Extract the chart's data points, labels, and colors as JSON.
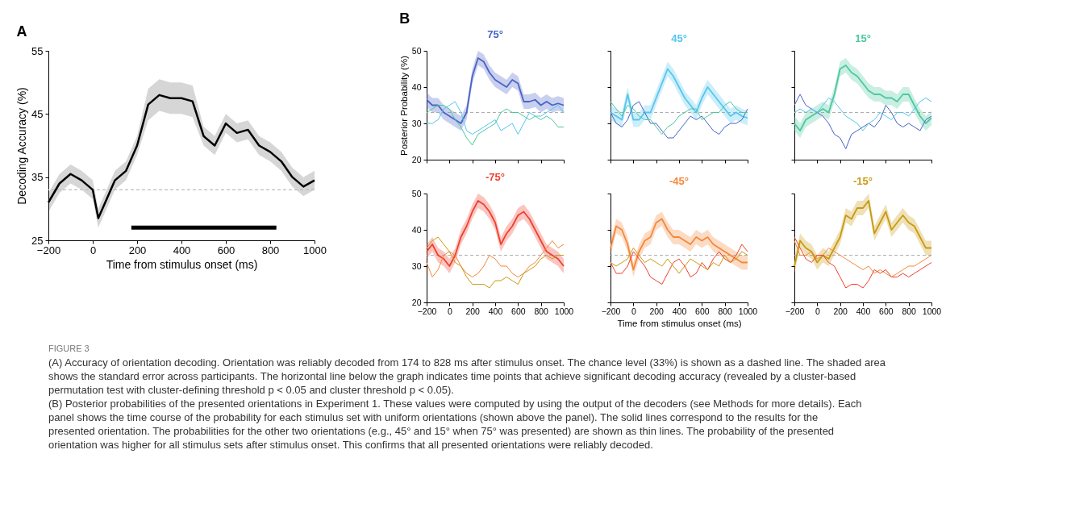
{
  "chart_data": [
    {
      "type": "line",
      "title": "A",
      "xlabel": "Time from stimulus onset (ms)",
      "ylabel": "Decoding Accuracy (%)",
      "x": [
        -200,
        -150,
        -100,
        -50,
        0,
        25,
        50,
        100,
        150,
        200,
        250,
        300,
        350,
        400,
        450,
        500,
        550,
        600,
        650,
        700,
        750,
        800,
        850,
        900,
        950,
        1000
      ],
      "xlim": [
        -200,
        1000
      ],
      "xticks": [
        -200,
        0,
        200,
        400,
        600,
        800,
        1000
      ],
      "ylim": [
        25,
        55
      ],
      "yticks": [
        25,
        35,
        45,
        55
      ],
      "grid": false,
      "series": [
        {
          "color": "#000000",
          "values": [
            31,
            34,
            35.5,
            34.5,
            33,
            28.5,
            30.5,
            34.5,
            36,
            40,
            46.5,
            48,
            47.5,
            47.5,
            47,
            41.5,
            40,
            43.5,
            42,
            42.5,
            40,
            39,
            37.5,
            35,
            33.5,
            34.5
          ],
          "lower": [
            29.5,
            32.5,
            34,
            33,
            31.5,
            27,
            29,
            33,
            34.5,
            38.5,
            44,
            45.5,
            45,
            45,
            44.5,
            40,
            38.5,
            42,
            40.5,
            41,
            38.5,
            37.5,
            36,
            33.5,
            32,
            33
          ],
          "upper": [
            32.5,
            35.5,
            37,
            36,
            34.5,
            30,
            32,
            36,
            37.5,
            41.5,
            49,
            50.5,
            50,
            50,
            49.5,
            43,
            41.5,
            45,
            43.5,
            44,
            41.5,
            40.5,
            39,
            36.5,
            35,
            36
          ]
        },
        {
          "color": "#000000",
          "x": [
            174,
            828
          ],
          "values": [
            27,
            27
          ]
        }
      ],
      "ref_lines": [
        {
          "axis": "y",
          "value": 33,
          "color": "#bbbbbb",
          "line_style": "dashed"
        }
      ],
      "annotations": [
        "FIGURE 3",
        "(A) Accuracy of orientation decoding. Orientation was reliably decoded from 174 to 828 ms after stimulus onset. The chance level (33%) is shown as a dashed line. The shaded area shows the standard error across participants. The horizontal line below the graph indicates time points that achieve significant decoding accuracy (revealed by a cluster-based permutation test with cluster-defining threshold p < 0.05 and cluster threshold p < 0.05).",
        "(B) Posterior probabilities of the presented orientations in Experiment 1. These values were computed by using the output of the decoders (see Methods for more details). Each panel shows the time course of the probability for each stimulus set with uniform orientations (shown above the panel). The solid lines correspond to the results for the presented orientation. The probabilities for the other two orientations (e.g., 45° and 15° when 75° was presented) are shown as thin lines. The probability of the presented orientation was higher for all stimulus sets after stimulus onset. This confirms that all presented orientations were reliably decoded."
      ]
    },
    {
      "type": "line",
      "title": "75°",
      "ylabel": "Posterior Probability (%)",
      "annotations": [
        "B"
      ],
      "tick_labels": "y",
      "x": [
        -200,
        -150,
        -100,
        -50,
        0,
        50,
        100,
        150,
        200,
        250,
        300,
        350,
        400,
        450,
        500,
        550,
        600,
        650,
        700,
        750,
        800,
        850,
        900,
        950,
        1000
      ],
      "xlim": [
        -200,
        1000
      ],
      "xticks": [
        -200,
        0,
        200,
        400,
        600,
        800,
        1000
      ],
      "ylim": [
        20,
        50
      ],
      "yticks": [
        20,
        30,
        40,
        50
      ],
      "grid": false,
      "series": [
        {
          "color": "#4a63c8",
          "values": [
            36.5,
            35,
            35,
            33,
            32,
            31,
            30,
            33,
            43,
            48,
            47,
            44,
            42,
            41,
            40,
            42,
            41,
            36,
            36,
            36.5,
            35,
            36,
            35,
            35.5,
            35
          ],
          "lower": [
            34.5,
            33,
            33,
            31,
            30,
            29,
            28,
            31,
            41,
            46,
            45,
            42,
            40,
            39,
            38,
            40,
            39,
            34,
            34,
            34.5,
            33,
            34,
            33,
            33.5,
            33
          ],
          "upper": [
            38.5,
            37,
            37,
            35,
            34,
            33,
            32,
            35,
            45,
            50,
            49,
            46,
            44,
            43,
            42,
            44,
            43,
            38,
            38,
            38.5,
            37,
            38,
            37,
            37.5,
            37
          ]
        },
        {
          "color": "#55c6ee",
          "values": [
            30,
            30,
            31,
            34,
            35,
            36,
            33,
            28,
            27,
            28,
            29,
            30,
            31,
            28,
            29,
            30,
            27,
            30,
            33,
            32,
            32,
            33,
            34,
            35,
            33
          ]
        },
        {
          "color": "#4cc8a0",
          "values": [
            33,
            34,
            35,
            35,
            34,
            31,
            29,
            26,
            24,
            27,
            28,
            29,
            30,
            33,
            34,
            33,
            33,
            32,
            31,
            32,
            31,
            32,
            31,
            29,
            29
          ]
        }
      ],
      "ref_lines": [
        {
          "axis": "y",
          "value": 33,
          "color": "#999999",
          "line_style": "dashed"
        }
      ]
    },
    {
      "type": "line",
      "title": "45°",
      "tick_labels": false,
      "x": [
        -200,
        -150,
        -100,
        -50,
        0,
        50,
        100,
        150,
        200,
        250,
        300,
        350,
        400,
        450,
        500,
        550,
        600,
        650,
        700,
        750,
        800,
        850,
        900,
        950,
        1000
      ],
      "xlim": [
        -200,
        1000
      ],
      "xticks": [
        -200,
        0,
        200,
        400,
        600,
        800,
        1000
      ],
      "ylim": [
        20,
        50
      ],
      "yticks": [
        20,
        30,
        40,
        50
      ],
      "grid": false,
      "series": [
        {
          "color": "#55c6ee",
          "values": [
            33,
            32,
            31,
            38,
            31,
            31,
            33,
            33,
            37,
            41,
            45,
            43,
            40,
            37,
            35,
            33,
            37,
            40,
            38,
            36,
            34,
            32,
            33,
            32,
            31.5
          ],
          "lower": [
            31,
            30,
            29,
            36,
            29,
            29,
            31,
            31,
            35,
            39,
            43,
            41,
            38,
            35,
            33,
            31,
            35,
            38,
            36,
            34,
            32,
            30,
            31,
            30,
            29.5
          ],
          "upper": [
            35,
            34,
            33,
            40,
            33,
            33,
            35,
            35,
            39,
            43,
            47,
            45,
            42,
            39,
            37,
            35,
            39,
            42,
            40,
            38,
            36,
            34,
            35,
            34,
            33.5
          ]
        },
        {
          "color": "#4a63c8",
          "values": [
            33,
            30,
            29,
            31,
            35,
            36,
            33,
            30,
            30,
            28,
            26,
            26,
            28,
            30,
            32,
            31,
            32,
            30,
            28,
            27,
            29,
            30,
            30,
            31,
            34
          ]
        },
        {
          "color": "#4cc8a0",
          "values": [
            36,
            34,
            32,
            35,
            34,
            32,
            31,
            31,
            29,
            27,
            29,
            30,
            32,
            33,
            34,
            34,
            31,
            32,
            33,
            33,
            35,
            36,
            34,
            33,
            33
          ]
        }
      ],
      "ref_lines": [
        {
          "axis": "y",
          "value": 33,
          "color": "#999999",
          "line_style": "dashed"
        }
      ]
    },
    {
      "type": "line",
      "title": "15°",
      "tick_labels": false,
      "x": [
        -200,
        -150,
        -100,
        -50,
        0,
        50,
        100,
        150,
        200,
        250,
        300,
        350,
        400,
        450,
        500,
        550,
        600,
        650,
        700,
        750,
        800,
        850,
        900,
        950,
        1000
      ],
      "xlim": [
        -200,
        1000
      ],
      "xticks": [
        -200,
        0,
        200,
        400,
        600,
        800,
        1000
      ],
      "ylim": [
        20,
        50
      ],
      "yticks": [
        20,
        30,
        40,
        50
      ],
      "grid": false,
      "series": [
        {
          "color": "#4cc8a0",
          "values": [
            30,
            28,
            31,
            32,
            33,
            34,
            33,
            38,
            45,
            46,
            44,
            43,
            41,
            39,
            38,
            38,
            37,
            37,
            36,
            38,
            38,
            35,
            32,
            30,
            31.5
          ],
          "lower": [
            28,
            26,
            29,
            30,
            31,
            32,
            31,
            36,
            43,
            44,
            42,
            41,
            39,
            37,
            36,
            36,
            35,
            35,
            34,
            36,
            36,
            33,
            30,
            28,
            29.5
          ],
          "upper": [
            32,
            30,
            33,
            34,
            35,
            36,
            35,
            40,
            47,
            48,
            46,
            45,
            43,
            41,
            40,
            40,
            39,
            39,
            38,
            40,
            40,
            37,
            34,
            32,
            33.5
          ]
        },
        {
          "color": "#4a63c8",
          "values": [
            35,
            38,
            35,
            34,
            33,
            32,
            30,
            27,
            26,
            23,
            27,
            28,
            29,
            30,
            29,
            31,
            35,
            33,
            30,
            29,
            30,
            29,
            28,
            31,
            32
          ]
        },
        {
          "color": "#55c6ee",
          "values": [
            33,
            34,
            33,
            34,
            33,
            35,
            37,
            36,
            34,
            32,
            31,
            30,
            28,
            30,
            31,
            33,
            32,
            31,
            33,
            33,
            32,
            34,
            36,
            37,
            36
          ]
        }
      ],
      "ref_lines": [
        {
          "axis": "y",
          "value": 33,
          "color": "#999999",
          "line_style": "dashed"
        }
      ]
    },
    {
      "type": "line",
      "title": "-75°",
      "x": [
        -200,
        -150,
        -100,
        -50,
        0,
        50,
        100,
        150,
        200,
        250,
        300,
        350,
        400,
        450,
        500,
        550,
        600,
        650,
        700,
        750,
        800,
        850,
        900,
        950,
        1000
      ],
      "xlim": [
        -200,
        1000
      ],
      "xticks": [
        -200,
        0,
        200,
        400,
        600,
        800,
        1000
      ],
      "ylim": [
        20,
        50
      ],
      "yticks": [
        20,
        30,
        40,
        50
      ],
      "grid": false,
      "series": [
        {
          "color": "#f0402e",
          "values": [
            34,
            36,
            33,
            32,
            30,
            33,
            38,
            41,
            45,
            48,
            47,
            45,
            42,
            36,
            39,
            41,
            44,
            45,
            43,
            40,
            37,
            34,
            33,
            32,
            30
          ],
          "lower": [
            32,
            34,
            31,
            30,
            28,
            31,
            36,
            39,
            43,
            46,
            45,
            43,
            40,
            34,
            37,
            39,
            42,
            43,
            41,
            38,
            35,
            32,
            31,
            30,
            28
          ],
          "upper": [
            36,
            38,
            35,
            34,
            32,
            35,
            40,
            43,
            47,
            50,
            49,
            47,
            44,
            38,
            41,
            43,
            46,
            47,
            45,
            42,
            39,
            36,
            35,
            34,
            32
          ]
        },
        {
          "color": "#f5873a",
          "values": [
            31,
            27,
            29,
            33,
            34,
            33,
            30,
            28,
            27,
            28,
            30,
            33,
            32,
            30,
            30,
            28,
            27,
            28,
            30,
            31,
            33,
            35,
            37,
            35,
            36
          ]
        },
        {
          "color": "#c89a10",
          "values": [
            35,
            37,
            38,
            36,
            34,
            31,
            30,
            27,
            25,
            25,
            25,
            24,
            26,
            26,
            27,
            26,
            25,
            28,
            29,
            30,
            32,
            33,
            32,
            33,
            33
          ]
        }
      ],
      "ref_lines": [
        {
          "axis": "y",
          "value": 33,
          "color": "#999999",
          "line_style": "dashed"
        }
      ]
    },
    {
      "type": "line",
      "title": "-45°",
      "xlabel": "Time from stimulus onset (ms)",
      "tick_labels": "x",
      "x": [
        -200,
        -150,
        -100,
        -50,
        0,
        50,
        100,
        150,
        200,
        250,
        300,
        350,
        400,
        450,
        500,
        550,
        600,
        650,
        700,
        750,
        800,
        850,
        900,
        950,
        1000
      ],
      "xlim": [
        -200,
        1000
      ],
      "xticks": [
        -200,
        0,
        200,
        400,
        600,
        800,
        1000
      ],
      "ylim": [
        20,
        50
      ],
      "yticks": [
        20,
        30,
        40,
        50
      ],
      "grid": false,
      "series": [
        {
          "color": "#f5873a",
          "values": [
            35,
            41,
            40,
            36,
            29,
            34,
            37,
            38,
            42,
            43,
            40,
            38,
            38,
            37,
            36,
            38,
            37,
            38,
            36,
            35,
            34,
            33,
            32,
            31,
            31
          ],
          "lower": [
            33,
            39,
            38,
            34,
            27,
            32,
            35,
            36,
            40,
            41,
            38,
            36,
            36,
            35,
            34,
            36,
            35,
            36,
            34,
            33,
            32,
            31,
            30,
            29,
            29
          ],
          "upper": [
            37,
            43,
            42,
            38,
            31,
            36,
            39,
            40,
            44,
            45,
            42,
            40,
            40,
            39,
            38,
            40,
            39,
            40,
            38,
            37,
            36,
            35,
            34,
            33,
            33
          ]
        },
        {
          "color": "#f0402e",
          "values": [
            31,
            28,
            28,
            30,
            34,
            32,
            30,
            27,
            26,
            25,
            28,
            31,
            32,
            30,
            27,
            28,
            31,
            29,
            32,
            34,
            32,
            31,
            33,
            36,
            34
          ]
        },
        {
          "color": "#c89a10",
          "values": [
            31,
            30,
            31,
            32,
            35,
            33,
            31,
            32,
            31,
            30,
            32,
            30,
            28,
            30,
            32,
            31,
            30,
            29,
            31,
            30,
            33,
            31,
            32,
            34,
            33
          ]
        }
      ],
      "ref_lines": [
        {
          "axis": "y",
          "value": 33,
          "color": "#999999",
          "line_style": "dashed"
        }
      ]
    },
    {
      "type": "line",
      "title": "-15°",
      "tick_labels": "x",
      "x": [
        -200,
        -150,
        -100,
        -50,
        0,
        50,
        100,
        150,
        200,
        250,
        300,
        350,
        400,
        450,
        500,
        550,
        600,
        650,
        700,
        750,
        800,
        850,
        900,
        950,
        1000
      ],
      "xlim": [
        -200,
        1000
      ],
      "xticks": [
        -200,
        0,
        200,
        400,
        600,
        800,
        1000
      ],
      "ylim": [
        20,
        50
      ],
      "yticks": [
        20,
        30,
        40,
        50
      ],
      "grid": false,
      "series": [
        {
          "color": "#c89a10",
          "values": [
            30,
            37,
            35,
            34,
            31,
            33,
            32,
            35,
            38,
            44,
            43,
            46,
            46,
            48,
            39,
            42,
            45,
            40,
            42,
            44,
            42,
            41,
            38,
            35,
            35
          ],
          "lower": [
            28,
            35,
            33,
            32,
            29,
            31,
            30,
            33,
            36,
            42,
            41,
            44,
            44,
            46,
            37,
            40,
            43,
            38,
            40,
            42,
            40,
            39,
            36,
            33,
            33
          ],
          "upper": [
            32,
            39,
            37,
            36,
            33,
            35,
            34,
            37,
            40,
            46,
            45,
            48,
            48,
            50,
            41,
            44,
            47,
            42,
            44,
            46,
            44,
            43,
            40,
            37,
            37
          ]
        },
        {
          "color": "#f5873a",
          "values": [
            37,
            33,
            33,
            34,
            32,
            33,
            35,
            34,
            33,
            32,
            31,
            30,
            29,
            30,
            28,
            29,
            28,
            27,
            28,
            29,
            30,
            30,
            31,
            32,
            33
          ]
        },
        {
          "color": "#f0402e",
          "values": [
            38,
            35,
            32,
            31,
            33,
            33,
            31,
            30,
            27,
            24,
            25,
            25,
            24,
            26,
            29,
            28,
            29,
            27,
            27,
            28,
            27,
            28,
            29,
            30,
            31
          ]
        }
      ],
      "ref_lines": [
        {
          "axis": "y",
          "value": 33,
          "color": "#999999",
          "line_style": "dashed"
        }
      ]
    }
  ]
}
